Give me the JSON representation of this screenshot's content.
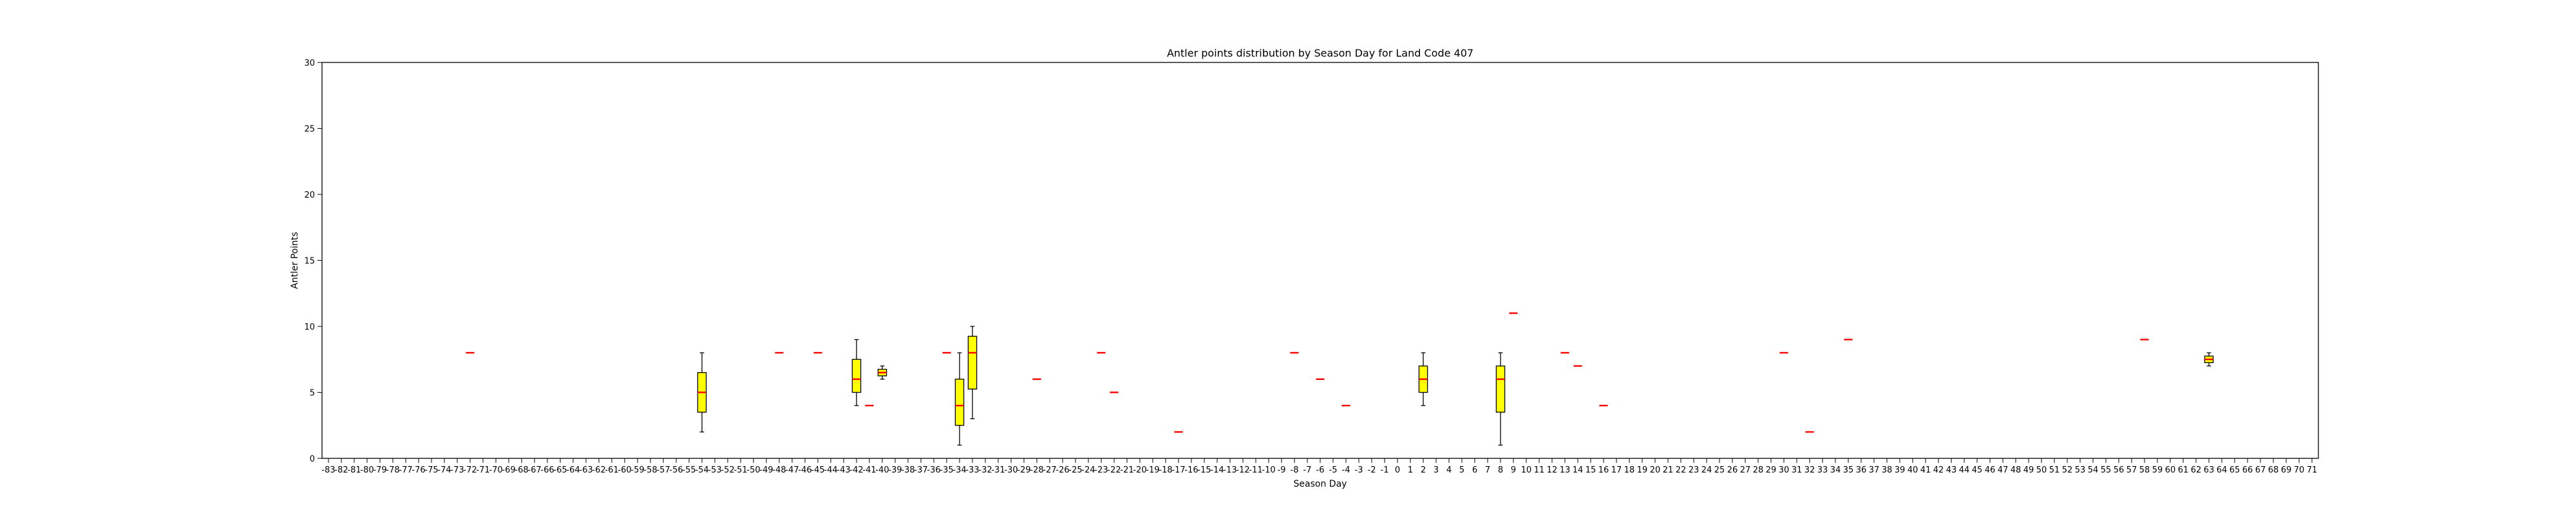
{
  "chart_data": {
    "type": "box",
    "title": "Antler points distribution by Season Day for Land Code 407",
    "xlabel": "Season Day",
    "ylabel": "Antler Points",
    "ylim": [
      0,
      30
    ],
    "yticks": [
      0,
      5,
      10,
      15,
      20,
      25,
      30
    ],
    "x_categories": [
      "-83",
      "-82",
      "-81",
      "-80",
      "-79",
      "-78",
      "-77",
      "-76",
      "-75",
      "-74",
      "-73",
      "-72",
      "-71",
      "-70",
      "-69",
      "-68",
      "-67",
      "-66",
      "-65",
      "-64",
      "-63",
      "-62",
      "-61",
      "-60",
      "-59",
      "-58",
      "-57",
      "-56",
      "-55",
      "-54",
      "-53",
      "-52",
      "-51",
      "-50",
      "-49",
      "-48",
      "-47",
      "-46",
      "-45",
      "-44",
      "-43",
      "-42",
      "-41",
      "-40",
      "-39",
      "-38",
      "-37",
      "-36",
      "-35",
      "-34",
      "-33",
      "-32",
      "-31",
      "-30",
      "-29",
      "-28",
      "-27",
      "-26",
      "-25",
      "-24",
      "-23",
      "-22",
      "-21",
      "-20",
      "-19",
      "-18",
      "-17",
      "-16",
      "-15",
      "-14",
      "-13",
      "-12",
      "-11",
      "-10",
      "-9",
      "-8",
      "-7",
      "-6",
      "-5",
      "-4",
      "-3",
      "-2",
      "-1",
      "0",
      "1",
      "2",
      "3",
      "4",
      "5",
      "6",
      "7",
      "8",
      "9",
      "10",
      "11",
      "12",
      "13",
      "14",
      "15",
      "16",
      "17",
      "18",
      "19",
      "20",
      "21",
      "22",
      "23",
      "24",
      "25",
      "26",
      "27",
      "28",
      "29",
      "30",
      "31",
      "32",
      "33",
      "34",
      "35",
      "36",
      "37",
      "38",
      "39",
      "40",
      "41",
      "42",
      "43",
      "44",
      "45",
      "46",
      "47",
      "48",
      "49",
      "50",
      "51",
      "52",
      "53",
      "54",
      "55",
      "56",
      "57",
      "58",
      "59",
      "60",
      "61",
      "62",
      "63",
      "64",
      "65",
      "66",
      "67",
      "68",
      "69",
      "70",
      "71"
    ],
    "boxes": [
      {
        "x": "-72",
        "min": 8,
        "q1": 8,
        "median": 8,
        "q3": 8,
        "max": 8
      },
      {
        "x": "-54",
        "min": 2,
        "q1": 3.5,
        "median": 5,
        "q3": 6.5,
        "max": 8
      },
      {
        "x": "-48",
        "min": 8,
        "q1": 8,
        "median": 8,
        "q3": 8,
        "max": 8
      },
      {
        "x": "-45",
        "min": 8,
        "q1": 8,
        "median": 8,
        "q3": 8,
        "max": 8
      },
      {
        "x": "-42",
        "min": 4,
        "q1": 5,
        "median": 6,
        "q3": 7.5,
        "max": 9
      },
      {
        "x": "-41",
        "min": 4,
        "q1": 4,
        "median": 4,
        "q3": 4,
        "max": 4
      },
      {
        "x": "-40",
        "min": 6,
        "q1": 6.25,
        "median": 6.5,
        "q3": 6.75,
        "max": 7
      },
      {
        "x": "-35",
        "min": 8,
        "q1": 8,
        "median": 8,
        "q3": 8,
        "max": 8
      },
      {
        "x": "-34",
        "min": 1,
        "q1": 2.5,
        "median": 4,
        "q3": 6,
        "max": 8
      },
      {
        "x": "-33",
        "min": 3,
        "q1": 5.25,
        "median": 8,
        "q3": 9.25,
        "max": 10
      },
      {
        "x": "-28",
        "min": 6,
        "q1": 6,
        "median": 6,
        "q3": 6,
        "max": 6
      },
      {
        "x": "-23",
        "min": 8,
        "q1": 8,
        "median": 8,
        "q3": 8,
        "max": 8
      },
      {
        "x": "-22",
        "min": 5,
        "q1": 5,
        "median": 5,
        "q3": 5,
        "max": 5
      },
      {
        "x": "-17",
        "min": 2,
        "q1": 2,
        "median": 2,
        "q3": 2,
        "max": 2
      },
      {
        "x": "-8",
        "min": 8,
        "q1": 8,
        "median": 8,
        "q3": 8,
        "max": 8
      },
      {
        "x": "-6",
        "min": 6,
        "q1": 6,
        "median": 6,
        "q3": 6,
        "max": 6
      },
      {
        "x": "-4",
        "min": 4,
        "q1": 4,
        "median": 4,
        "q3": 4,
        "max": 4
      },
      {
        "x": "2",
        "min": 4,
        "q1": 5,
        "median": 6,
        "q3": 7,
        "max": 8
      },
      {
        "x": "8",
        "min": 1,
        "q1": 3.5,
        "median": 6,
        "q3": 7,
        "max": 8
      },
      {
        "x": "9",
        "min": 11,
        "q1": 11,
        "median": 11,
        "q3": 11,
        "max": 11
      },
      {
        "x": "13",
        "min": 8,
        "q1": 8,
        "median": 8,
        "q3": 8,
        "max": 8
      },
      {
        "x": "14",
        "min": 7,
        "q1": 7,
        "median": 7,
        "q3": 7,
        "max": 7
      },
      {
        "x": "16",
        "min": 4,
        "q1": 4,
        "median": 4,
        "q3": 4,
        "max": 4
      },
      {
        "x": "30",
        "min": 8,
        "q1": 8,
        "median": 8,
        "q3": 8,
        "max": 8
      },
      {
        "x": "32",
        "min": 2,
        "q1": 2,
        "median": 2,
        "q3": 2,
        "max": 2
      },
      {
        "x": "35",
        "min": 9,
        "q1": 9,
        "median": 9,
        "q3": 9,
        "max": 9
      },
      {
        "x": "58",
        "min": 9,
        "q1": 9,
        "median": 9,
        "q3": 9,
        "max": 9
      },
      {
        "x": "63",
        "min": 7,
        "q1": 7.25,
        "median": 7.5,
        "q3": 7.75,
        "max": 8
      }
    ],
    "colors": {
      "box_fill": "#ffff00",
      "box_edge": "#000000",
      "median": "#ff0000",
      "axes": "#000000"
    },
    "grid": false,
    "legend": "none"
  }
}
